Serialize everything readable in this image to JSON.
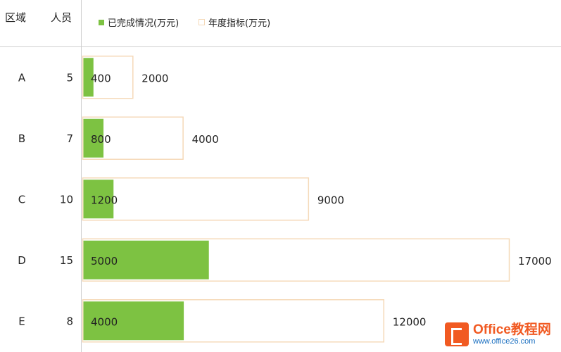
{
  "header": {
    "region_label": "区域",
    "people_label": "人员"
  },
  "legend": {
    "completed": "已完成情况(万元)",
    "target": "年度指标(万元)"
  },
  "colors": {
    "completed_fill": "#7dc242",
    "target_border": "#f5d9b8",
    "divider": "#cfcfcf"
  },
  "chart_data": {
    "type": "bar",
    "orientation": "horizontal",
    "categories": [
      "A",
      "B",
      "C",
      "D",
      "E"
    ],
    "people": [
      5,
      7,
      10,
      15,
      8
    ],
    "series": [
      {
        "name": "已完成情况(万元)",
        "values": [
          400,
          800,
          1200,
          5000,
          4000
        ]
      },
      {
        "name": "年度指标(万元)",
        "values": [
          2000,
          4000,
          9000,
          17000,
          12000
        ]
      }
    ],
    "xlim": [
      0,
      17000
    ],
    "grid": false,
    "legend_position": "top"
  },
  "watermark": {
    "title": "Office教程网",
    "url": "www.office26.com"
  }
}
